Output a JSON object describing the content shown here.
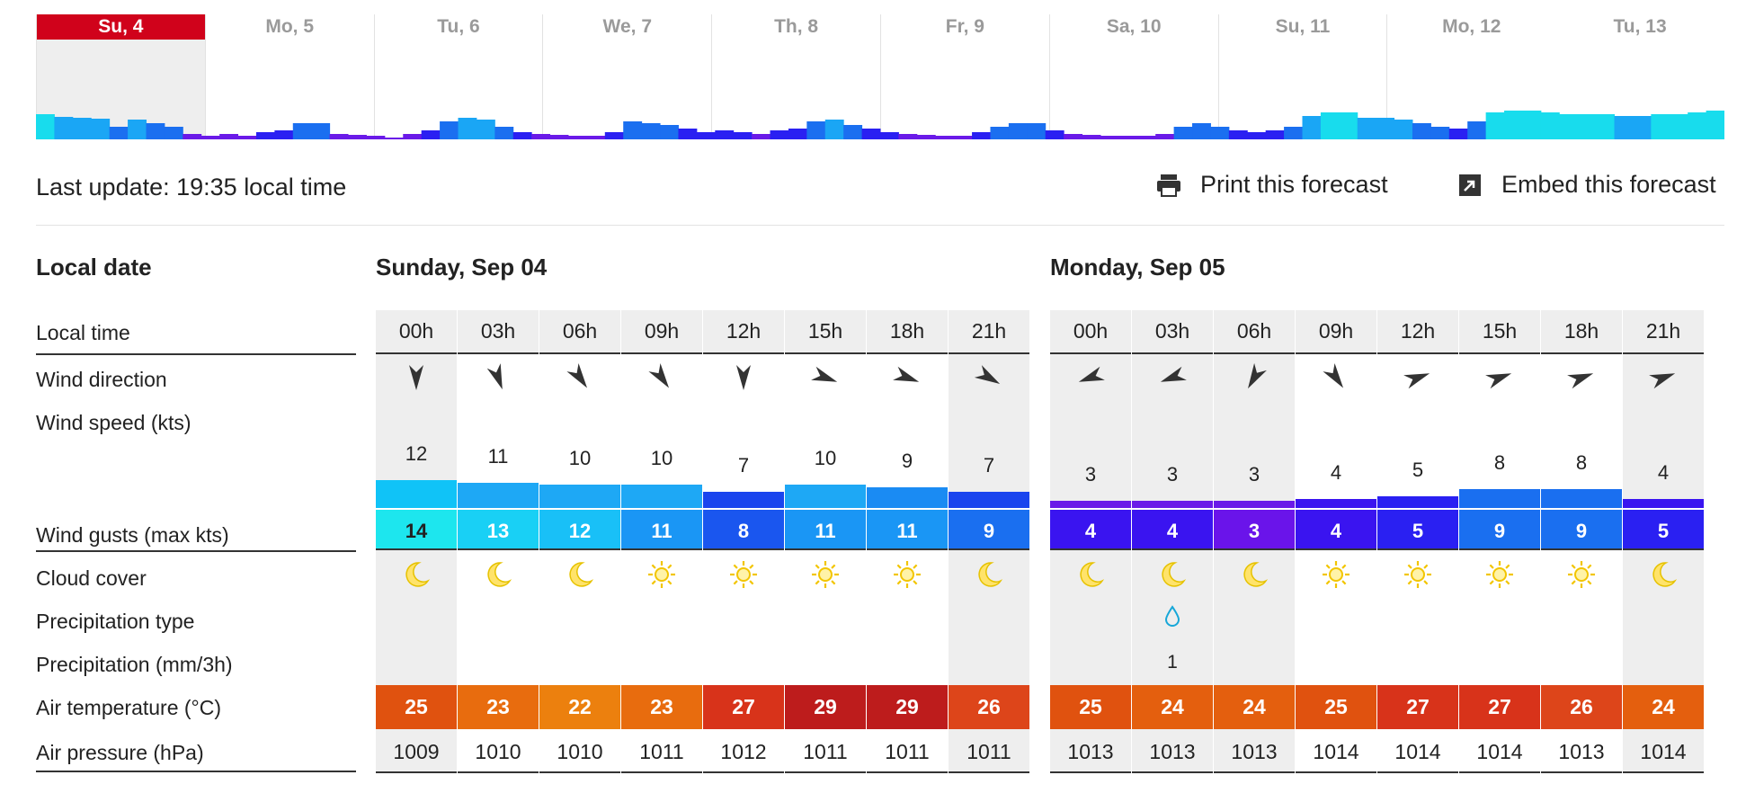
{
  "strip": {
    "days": [
      {
        "label": "Su, 4",
        "active": true
      },
      {
        "label": "Mo, 5",
        "active": false
      },
      {
        "label": "Tu, 6",
        "active": false
      },
      {
        "label": "We, 7",
        "active": false
      },
      {
        "label": "Th, 8",
        "active": false
      },
      {
        "label": "Fr, 9",
        "active": false
      },
      {
        "label": "Sa, 10",
        "active": false
      },
      {
        "label": "Su, 11",
        "active": false
      },
      {
        "label": "Mo, 12",
        "active": false
      },
      {
        "label": "Tu, 13",
        "active": false
      }
    ]
  },
  "header": {
    "last_update": "Last update: 19:35 local time",
    "print_label": "Print this forecast",
    "embed_label": "Embed this forecast",
    "print_icon": "printer-icon",
    "embed_icon": "embed-arrow-icon"
  },
  "labels": {
    "local_date": "Local date",
    "local_time": "Local time",
    "wind_direction": "Wind direction",
    "wind_speed": "Wind speed  (kts)",
    "wind_gusts": "Wind gusts  (max kts)",
    "cloud_cover": "Cloud cover",
    "precip_type": "Precipitation type",
    "precipitation": "Precipitation  (mm/3h)",
    "air_temp": "Air temperature  (°C)",
    "air_pressure": "Air pressure  (hPa)"
  },
  "days": [
    {
      "title": "Sunday, Sep 04",
      "hours": [
        {
          "time": "00h",
          "night": true,
          "dir": "N",
          "speed": "12",
          "gust": "14",
          "cloud": "moon",
          "ptype": "",
          "precip": "",
          "temp": "25",
          "press": "1009",
          "speed_color": "#10c3f7",
          "gust_color": "#1de6ee",
          "temp_color": "#e0520f"
        },
        {
          "time": "03h",
          "night": false,
          "dir": "NNW",
          "speed": "11",
          "gust": "13",
          "cloud": "moon",
          "ptype": "",
          "precip": "",
          "temp": "23",
          "press": "1010",
          "speed_color": "#1ea8f5",
          "gust_color": "#19d0f5",
          "temp_color": "#e86c0e"
        },
        {
          "time": "06h",
          "night": false,
          "dir": "NW",
          "speed": "10",
          "gust": "12",
          "cloud": "moon",
          "ptype": "",
          "precip": "",
          "temp": "22",
          "press": "1010",
          "speed_color": "#1ea8f5",
          "gust_color": "#19c0f7",
          "temp_color": "#ec800e"
        },
        {
          "time": "09h",
          "night": false,
          "dir": "NW",
          "speed": "10",
          "gust": "11",
          "cloud": "sun",
          "ptype": "",
          "precip": "",
          "temp": "23",
          "press": "1011",
          "speed_color": "#1ea8f5",
          "gust_color": "#1a96f5",
          "temp_color": "#e86c0e"
        },
        {
          "time": "12h",
          "night": false,
          "dir": "N",
          "speed": "7",
          "gust": "8",
          "cloud": "sun",
          "ptype": "",
          "precip": "",
          "temp": "27",
          "press": "1012",
          "speed_color": "#1a45ee",
          "gust_color": "#1a56ef",
          "temp_color": "#d8331a"
        },
        {
          "time": "15h",
          "night": false,
          "dir": "W",
          "speed": "10",
          "gust": "11",
          "cloud": "sun",
          "ptype": "",
          "precip": "",
          "temp": "29",
          "press": "1011",
          "speed_color": "#1ea8f5",
          "gust_color": "#1a96f5",
          "temp_color": "#bd1c1c"
        },
        {
          "time": "18h",
          "night": false,
          "dir": "W",
          "speed": "9",
          "gust": "11",
          "cloud": "sun",
          "ptype": "",
          "precip": "",
          "temp": "29",
          "press": "1011",
          "speed_color": "#1a8bf3",
          "gust_color": "#1a96f5",
          "temp_color": "#bd1c1c"
        },
        {
          "time": "21h",
          "night": true,
          "dir": "WNW",
          "speed": "7",
          "gust": "9",
          "cloud": "moon",
          "ptype": "",
          "precip": "",
          "temp": "26",
          "press": "1011",
          "speed_color": "#1a45ee",
          "gust_color": "#1a6ff0",
          "temp_color": "#dd451a"
        }
      ]
    },
    {
      "title": "Monday, Sep 05",
      "hours": [
        {
          "time": "00h",
          "night": true,
          "dir": "E",
          "speed": "3",
          "gust": "4",
          "cloud": "moon",
          "ptype": "",
          "precip": "",
          "temp": "25",
          "press": "1013",
          "speed_color": "#6a1ae8",
          "gust_color": "#3a14f0",
          "temp_color": "#e0520f"
        },
        {
          "time": "03h",
          "night": true,
          "dir": "E",
          "speed": "3",
          "gust": "4",
          "cloud": "moon",
          "ptype": "rain",
          "precip": "1",
          "temp": "24",
          "press": "1013",
          "speed_color": "#6a1ae8",
          "gust_color": "#3a14f0",
          "temp_color": "#e45f0e"
        },
        {
          "time": "06h",
          "night": true,
          "dir": "NE",
          "speed": "3",
          "gust": "3",
          "cloud": "moon",
          "ptype": "",
          "precip": "",
          "temp": "24",
          "press": "1013",
          "speed_color": "#6a1ae8",
          "gust_color": "#6a14ea",
          "temp_color": "#e45f0e"
        },
        {
          "time": "09h",
          "night": false,
          "dir": "NW",
          "speed": "4",
          "gust": "4",
          "cloud": "sun",
          "ptype": "",
          "precip": "",
          "temp": "25",
          "press": "1014",
          "speed_color": "#3a14f0",
          "gust_color": "#3a14f0",
          "temp_color": "#e0520f"
        },
        {
          "time": "12h",
          "night": false,
          "dir": "SW",
          "speed": "5",
          "gust": "5",
          "cloud": "sun",
          "ptype": "",
          "precip": "",
          "temp": "27",
          "press": "1014",
          "speed_color": "#2a20f2",
          "gust_color": "#2a20f2",
          "temp_color": "#d8331a"
        },
        {
          "time": "15h",
          "night": false,
          "dir": "SW",
          "speed": "8",
          "gust": "9",
          "cloud": "sun",
          "ptype": "",
          "precip": "",
          "temp": "27",
          "press": "1014",
          "speed_color": "#1a6ff0",
          "gust_color": "#1a6ff0",
          "temp_color": "#d8331a"
        },
        {
          "time": "18h",
          "night": false,
          "dir": "SW",
          "speed": "8",
          "gust": "9",
          "cloud": "sun",
          "ptype": "",
          "precip": "",
          "temp": "26",
          "press": "1013",
          "speed_color": "#1a6ff0",
          "gust_color": "#1a6ff0",
          "temp_color": "#dd451a"
        },
        {
          "time": "21h",
          "night": true,
          "dir": "SW",
          "speed": "4",
          "gust": "5",
          "cloud": "moon",
          "ptype": "",
          "precip": "",
          "temp": "24",
          "press": "1014",
          "speed_color": "#3a14f0",
          "gust_color": "#2a20f2",
          "temp_color": "#e45f0e"
        }
      ]
    }
  ]
}
